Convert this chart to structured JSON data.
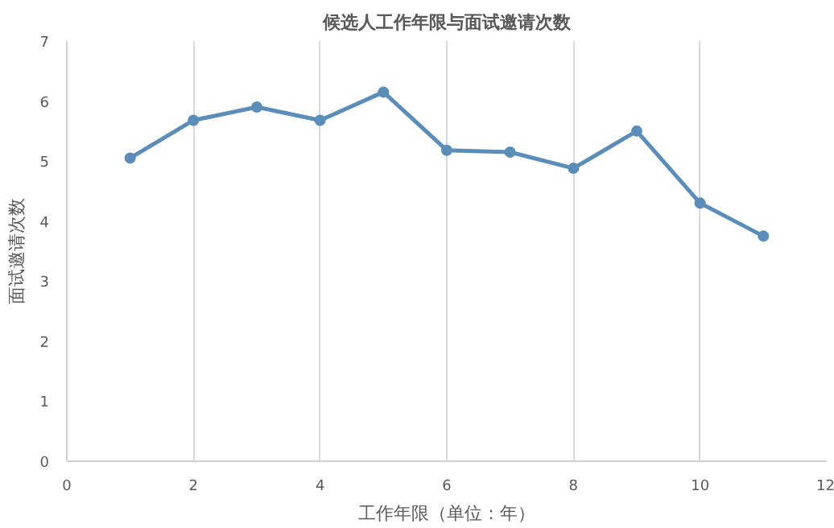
{
  "chart_data": {
    "type": "line",
    "title": "候选人工作年限与面试邀请次数",
    "xlabel": "工作年限（单位：年）",
    "ylabel": "面试邀请次数",
    "x": [
      1,
      2,
      3,
      4,
      5,
      6,
      7,
      8,
      9,
      10,
      11
    ],
    "series": [
      {
        "color": "#5b8db8",
        "values": [
          5.05,
          5.68,
          5.9,
          5.68,
          6.15,
          5.18,
          5.15,
          4.88,
          5.5,
          4.3,
          3.75
        ]
      }
    ],
    "xlim": [
      0,
      12
    ],
    "ylim": [
      0,
      7
    ],
    "xticks": [
      0,
      2,
      4,
      6,
      8,
      10,
      12
    ],
    "yticks": [
      0,
      1,
      2,
      3,
      4,
      5,
      6,
      7
    ],
    "grid": "x",
    "marker": "circle",
    "line_style": "solid"
  }
}
